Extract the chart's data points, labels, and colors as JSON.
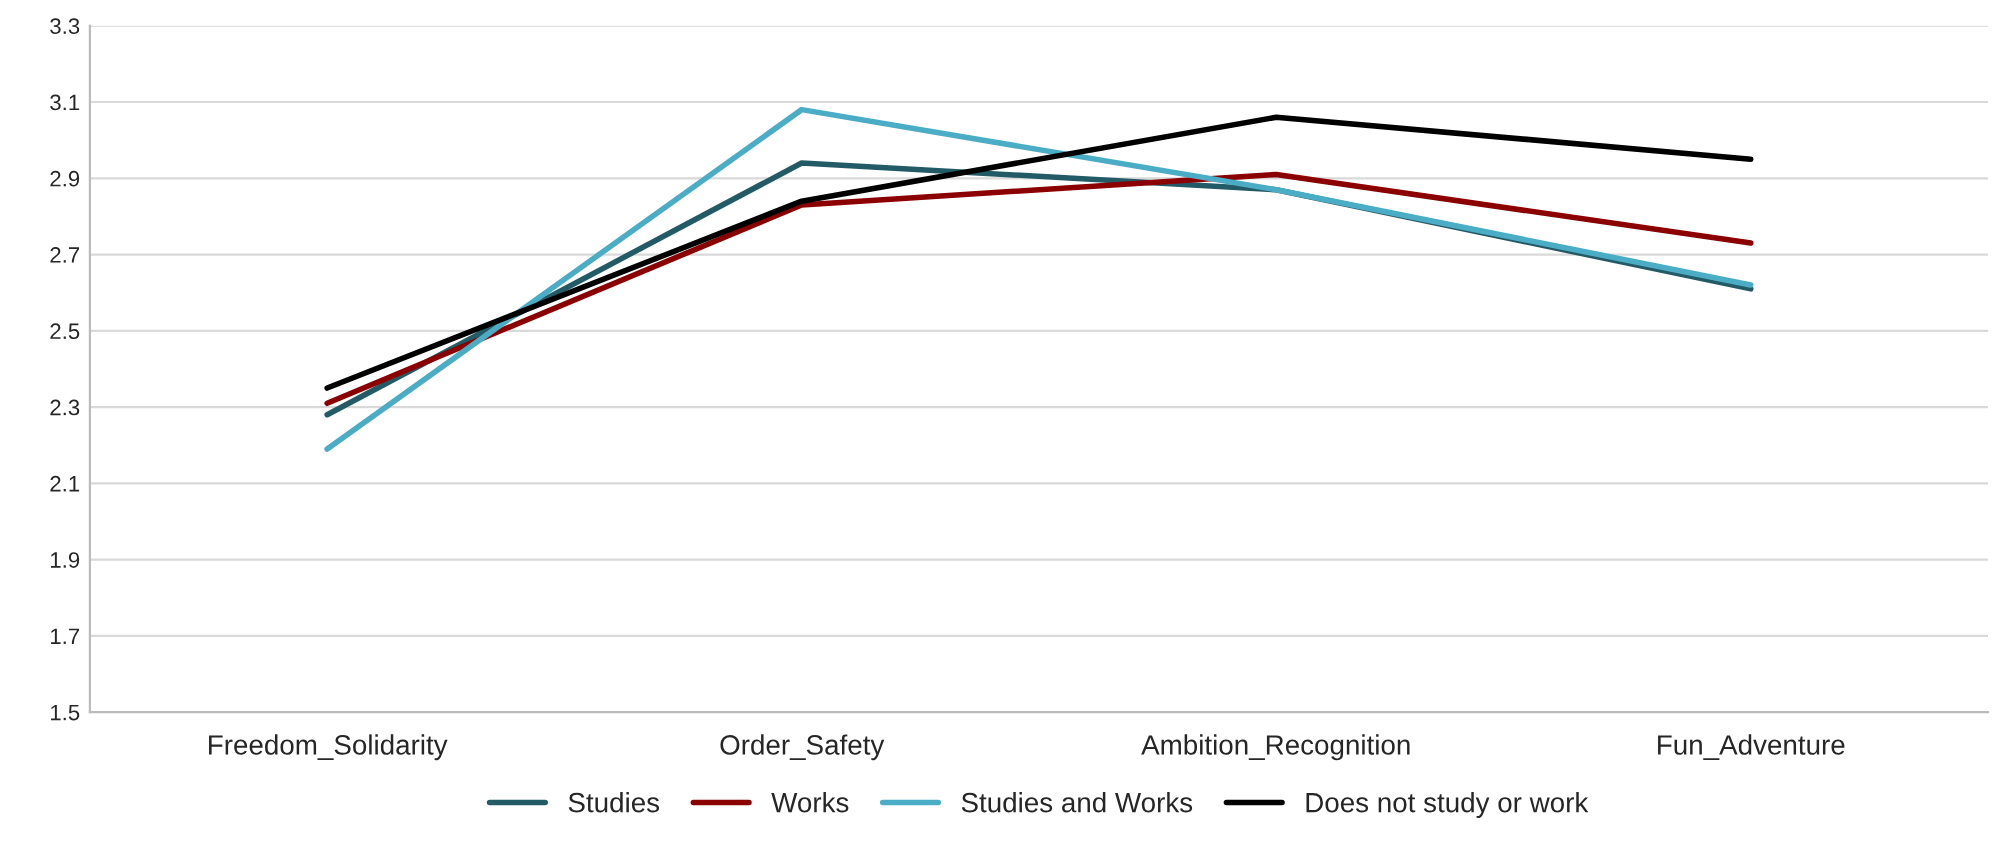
{
  "chart_data": {
    "type": "line",
    "categories": [
      "Freedom_Solidarity",
      "Order_Safety",
      "Ambition_Recognition",
      "Fun_Adventure"
    ],
    "series": [
      {
        "name": "Studies",
        "color": "#225b66",
        "values": [
          2.28,
          2.94,
          2.87,
          2.61
        ]
      },
      {
        "name": "Works",
        "color": "#8b0000",
        "values": [
          2.31,
          2.83,
          2.91,
          2.73
        ]
      },
      {
        "name": "Studies and Works",
        "color": "#4bacc6",
        "values": [
          2.19,
          3.08,
          2.87,
          2.62
        ]
      },
      {
        "name": "Does not study or work",
        "color": "#000000",
        "values": [
          2.35,
          2.84,
          3.06,
          2.95
        ]
      }
    ],
    "ylim": [
      1.5,
      3.3
    ],
    "yticks": [
      1.5,
      1.7,
      1.9,
      2.1,
      2.3,
      2.5,
      2.7,
      2.9,
      3.1,
      3.3
    ],
    "grid": "y",
    "legend": "bottom",
    "marker": "none",
    "line_style": "solid"
  }
}
